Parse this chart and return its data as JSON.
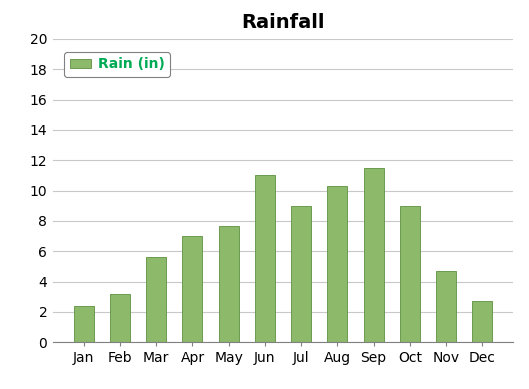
{
  "categories": [
    "Jan",
    "Feb",
    "Mar",
    "Apr",
    "May",
    "Jun",
    "Jul",
    "Aug",
    "Sep",
    "Oct",
    "Nov",
    "Dec"
  ],
  "values": [
    2.4,
    3.2,
    5.6,
    7.0,
    7.7,
    11.0,
    9.0,
    10.3,
    11.5,
    9.0,
    4.7,
    2.7
  ],
  "bar_color": "#8DB96B",
  "bar_edge_color": "#6B9A50",
  "title": "Rainfall",
  "title_fontsize": 14,
  "title_fontweight": "bold",
  "legend_label": "Rain (in)",
  "legend_label_color": "#00AA55",
  "legend_label_fontsize": 10,
  "legend_label_fontweight": "bold",
  "ylim": [
    0,
    20
  ],
  "yticks": [
    0,
    2,
    4,
    6,
    8,
    10,
    12,
    14,
    16,
    18,
    20
  ],
  "grid_color": "#C8C8C8",
  "background_color": "#FFFFFF",
  "tick_fontsize": 10,
  "spine_color": "#808080",
  "bar_width": 0.55
}
